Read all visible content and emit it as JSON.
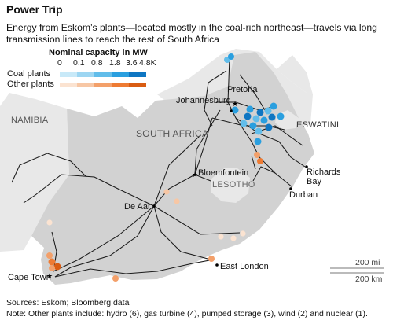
{
  "title": "Power Trip",
  "subtitle": "Energy from Eskom’s plants—located mostly in the coal-rich northeast—travels via long transmission lines to reach the rest of South Africa",
  "legend": {
    "title": "Nominal capacity in MW",
    "ticks": [
      "0",
      "0.1",
      "0.8",
      "1.8",
      "3.6",
      "4.8K"
    ],
    "coal_label": "Coal plants",
    "other_label": "Other plants",
    "coal_colors": [
      "#c8e9f8",
      "#9dd6f2",
      "#62bdea",
      "#2a9fdf",
      "#0f76c2"
    ],
    "other_colors": [
      "#fbe3d1",
      "#f7c7a5",
      "#f3a06a",
      "#ee7b33",
      "#d95c12"
    ]
  },
  "regions": {
    "namibia": "NAMIBIA",
    "south_africa": "SOUTH AFRICA",
    "eswatini": "ESWATINI",
    "lesotho": "LESOTHO"
  },
  "cities": {
    "johannesburg": "Johannesburg",
    "pretoria": "Pretoria",
    "bloemfontein": "Bloemfontein",
    "richards_bay": "Richards Bay",
    "durban": "Durban",
    "de_aar": "De Aar",
    "east_london": "East London",
    "cape_town": "Cape Town"
  },
  "scale": {
    "miles": "200 mi",
    "km": "200 km"
  },
  "sources": "Sources: Eskom; Bloomberg data",
  "note": "Note: Other plants include: hydro (6), gas turbine (4), pumped storage (3), wind (2) and nuclear (1).",
  "colors": {
    "sa_land": "#d2d2d2",
    "neighbor_land": "#e8e8e8",
    "lines": "#1a1a1a"
  }
}
